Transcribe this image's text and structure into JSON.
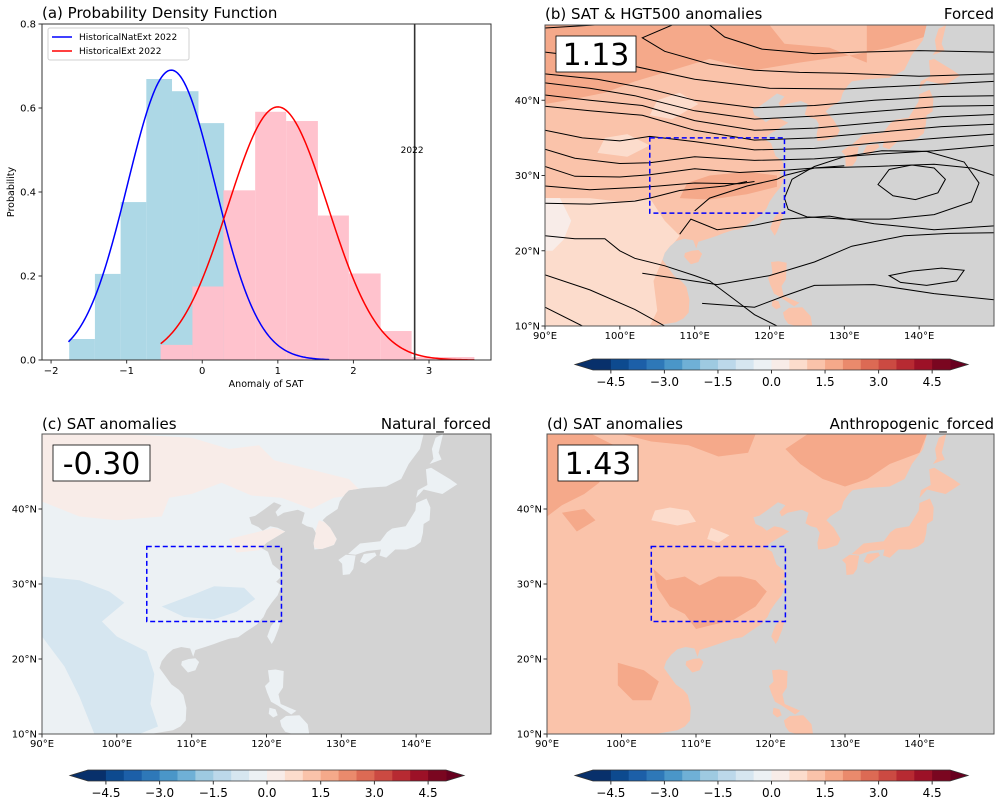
{
  "figure": {
    "colorbar": {
      "ticks": [
        "−4.5",
        "−3.0",
        "−1.5",
        "0.0",
        "1.5",
        "3.0",
        "4.5"
      ],
      "tick_values": [
        -4.5,
        -3.0,
        -1.5,
        0.0,
        1.5,
        3.0,
        4.5
      ],
      "range": [
        -5,
        5
      ],
      "step": 0.5,
      "extend": "both",
      "colormap": "RdBu_r",
      "colors": [
        "#08306b",
        "#0d4a8f",
        "#1c5fa8",
        "#2e78b8",
        "#4a96c8",
        "#6fb0d6",
        "#9ecae1",
        "#bcd8ea",
        "#d6e6f0",
        "#ecf1f4",
        "#f8ece8",
        "#fcdccc",
        "#fac3aa",
        "#f5a98a",
        "#ea8a6c",
        "#dc6a54",
        "#cb4a42",
        "#b72a32",
        "#9c1127",
        "#7a0620"
      ],
      "under_color": "#08306b",
      "over_color": "#67001f"
    },
    "map_extent": {
      "lon": [
        90,
        150
      ],
      "lat": [
        10,
        50
      ]
    },
    "lon_ticks": [
      "90°E",
      "100°E",
      "110°E",
      "120°E",
      "130°E",
      "140°E"
    ],
    "lat_ticks": [
      "10°N",
      "20°N",
      "30°N",
      "40°N"
    ],
    "lon_tick_values": [
      90,
      100,
      110,
      120,
      130,
      140
    ],
    "lat_tick_values": [
      10,
      20,
      30,
      40
    ],
    "region_box": {
      "lon": [
        104,
        122
      ],
      "lat": [
        25,
        35
      ],
      "color": "#0000ff",
      "style": "dashed"
    },
    "land_mask_color": "#d3d3d3"
  },
  "chart_data": [
    {
      "type": "bar",
      "panel": "a",
      "title": "(a) Probability Density Function",
      "xlabel": "Anomaly of SAT",
      "ylabel": "Probability",
      "xlim": [
        -2.12,
        3.82
      ],
      "ylim": [
        0,
        0.8
      ],
      "xticks": [
        -2,
        -1,
        0,
        1,
        2,
        3
      ],
      "xtick_labels": [
        "−2",
        "−1",
        "0",
        "1",
        "2",
        "3"
      ],
      "yticks": [
        0.0,
        0.2,
        0.4,
        0.6,
        0.8
      ],
      "ytick_labels": [
        "0.0",
        "0.2",
        "0.4",
        "0.6",
        "0.8"
      ],
      "legend": {
        "placement": "top-left",
        "entries": [
          {
            "label": "HistoricalNatExt 2022",
            "color": "#0000ff"
          },
          {
            "label": "HistoricalExt 2022",
            "color": "#ff0000"
          }
        ]
      },
      "histograms": [
        {
          "name": "HistoricalNatExt",
          "color": "#add8e6",
          "bin_edges": [
            -1.76,
            -1.42,
            -1.08,
            -0.74,
            -0.4,
            -0.05,
            0.29
          ],
          "values": [
            0.05,
            0.205,
            0.376,
            0.669,
            0.64,
            0.564,
            0.174
          ]
        },
        {
          "name": "HistoricalExt",
          "color": "#ffc0cb",
          "bin_edges": [
            -0.55,
            -0.13,
            0.28,
            0.7,
            1.11,
            1.53,
            1.94,
            2.36,
            2.77,
            3.19,
            3.6
          ],
          "values": [
            0.036,
            0.175,
            0.404,
            0.591,
            0.569,
            0.344,
            0.206,
            0.069,
            0.007,
            0.007
          ]
        }
      ],
      "series": [
        {
          "name": "HistoricalNatExt 2022",
          "color": "#0000ff",
          "kind": "normal_pdf",
          "mean": -0.41,
          "std": 0.578,
          "x_range": [
            -1.77,
            1.68
          ]
        },
        {
          "name": "HistoricalExt 2022",
          "color": "#ff0000",
          "kind": "normal_pdf",
          "mean": 1.0,
          "std": 0.662,
          "x_range": [
            -0.55,
            3.6
          ]
        }
      ],
      "annotations": [
        {
          "type": "vline",
          "x": 2.81,
          "color": "#333333",
          "label": "2022",
          "label_y": 0.5
        }
      ]
    },
    {
      "type": "heatmap",
      "panel": "b",
      "title": "(b) SAT & HGT500 anomalies",
      "subtitle": "Forced",
      "area_mean": "1.13",
      "contours": "HGT500 anomalies (black lines)",
      "dominant_levels": [
        0.5,
        1.0,
        1.5,
        2.0
      ]
    },
    {
      "type": "heatmap",
      "panel": "c",
      "title": "(c) SAT anomalies",
      "subtitle": "Natural_forced",
      "area_mean": "-0.30",
      "dominant_levels": [
        -1.0,
        -0.5,
        0.0
      ]
    },
    {
      "type": "heatmap",
      "panel": "d",
      "title": "(d) SAT anomalies",
      "subtitle": "Anthropogenic_forced",
      "area_mean": "1.43",
      "dominant_levels": [
        0.5,
        1.0,
        1.5
      ]
    }
  ]
}
